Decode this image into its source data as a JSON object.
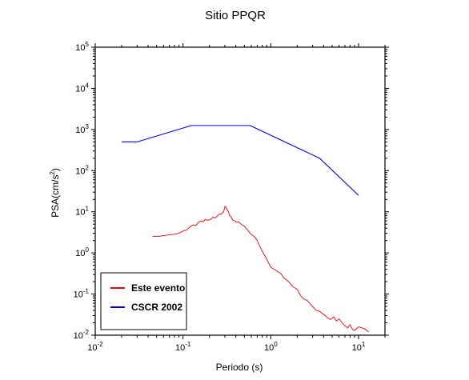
{
  "chart_data": {
    "type": "line",
    "title": "Sitio PPQR",
    "xlabel": "Periodo (s)",
    "ylabel": "PSA(cm/s",
    "ylabel_sup": "2",
    "ylabel_close": ")",
    "x_scale": "log",
    "y_scale": "log",
    "xlim": [
      0.01,
      20
    ],
    "ylim": [
      0.01,
      100000
    ],
    "grid": true,
    "legend_position": "bottom-left",
    "x_ticks": [
      {
        "base": "10",
        "exp": "-2",
        "value": 0.01
      },
      {
        "base": "10",
        "exp": "-1",
        "value": 0.1
      },
      {
        "base": "10",
        "exp": "0",
        "value": 1
      },
      {
        "base": "10",
        "exp": "1",
        "value": 10
      }
    ],
    "y_ticks": [
      {
        "base": "10",
        "exp": "-2",
        "value": 0.01
      },
      {
        "base": "10",
        "exp": "-1",
        "value": 0.1
      },
      {
        "base": "10",
        "exp": "0",
        "value": 1
      },
      {
        "base": "10",
        "exp": "1",
        "value": 10
      },
      {
        "base": "10",
        "exp": "2",
        "value": 100
      },
      {
        "base": "10",
        "exp": "3",
        "value": 1000
      },
      {
        "base": "10",
        "exp": "4",
        "value": 10000
      },
      {
        "base": "10",
        "exp": "5",
        "value": 100000
      }
    ],
    "series": [
      {
        "name": "Este evento",
        "color": "#ff0000",
        "x": [
          0.045,
          0.055,
          0.065,
          0.075,
          0.085,
          0.095,
          0.1,
          0.11,
          0.12,
          0.13,
          0.14,
          0.15,
          0.16,
          0.17,
          0.18,
          0.19,
          0.2,
          0.21,
          0.22,
          0.23,
          0.24,
          0.25,
          0.26,
          0.27,
          0.28,
          0.29,
          0.3,
          0.31,
          0.32,
          0.33,
          0.34,
          0.35,
          0.37,
          0.39,
          0.41,
          0.43,
          0.45,
          0.47,
          0.5,
          0.55,
          0.6,
          0.65,
          0.7,
          0.8,
          0.9,
          1.0,
          1.1,
          1.2,
          1.3,
          1.4,
          1.6,
          1.8,
          2.0,
          2.2,
          2.4,
          2.6,
          2.8,
          3.0,
          3.3,
          3.6,
          4.0,
          4.4,
          4.8,
          5.2,
          5.6,
          6.0,
          6.5,
          7.0,
          7.5,
          8.0,
          8.5,
          9.0,
          10.0,
          11.0,
          12.0,
          13.0
        ],
        "y": [
          2.5,
          2.55,
          2.7,
          2.8,
          2.9,
          3.2,
          3.4,
          3.6,
          4.3,
          4.8,
          4.6,
          5.5,
          6.0,
          5.8,
          6.6,
          6.2,
          6.4,
          6.7,
          7.5,
          7.0,
          7.5,
          8.2,
          8.8,
          8.6,
          9.5,
          9.8,
          13.5,
          13.0,
          11.0,
          10.0,
          8.0,
          7.8,
          6.2,
          6.0,
          5.5,
          5.8,
          5.2,
          4.8,
          4.5,
          3.5,
          2.8,
          2.5,
          2.0,
          1.1,
          0.7,
          0.45,
          0.4,
          0.35,
          0.32,
          0.25,
          0.2,
          0.15,
          0.13,
          0.09,
          0.075,
          0.07,
          0.058,
          0.05,
          0.04,
          0.038,
          0.032,
          0.027,
          0.024,
          0.028,
          0.022,
          0.025,
          0.02,
          0.017,
          0.015,
          0.018,
          0.014,
          0.013,
          0.016,
          0.015,
          0.014,
          0.012
        ]
      },
      {
        "name": "CSCR 2002",
        "color": "#0000ff",
        "x": [
          0.02,
          0.03,
          0.125,
          0.58,
          3.6,
          10.0
        ],
        "y": [
          500,
          500,
          1250,
          1250,
          200,
          25
        ]
      }
    ]
  }
}
